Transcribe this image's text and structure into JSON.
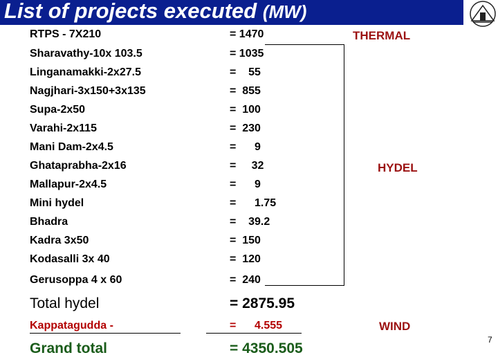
{
  "title": {
    "main": "List of  projects executed",
    "unit": "(MW)"
  },
  "category_labels": {
    "thermal": "THERMAL",
    "hydel": "HYDEL",
    "wind": "WIND"
  },
  "thermal": {
    "name": "RTPS -  7X210",
    "value": "= 1470"
  },
  "hydel_rows": [
    {
      "name": "Sharavathy-10x 103.5",
      "value": "= 1035"
    },
    {
      "name": "Linganamakki-2x27.5",
      "value": "=    55"
    },
    {
      "name": "Nagjhari-3x150+3x135",
      "value": "=  855"
    },
    {
      "name": "Supa-2x50",
      "value": "=  100"
    },
    {
      "name": "Varahi-2x115",
      "value": "=  230"
    },
    {
      "name": "Mani Dam-2x4.5",
      "value": "=      9"
    },
    {
      "name": "Ghataprabha-2x16",
      "value": "=     32"
    },
    {
      "name": "Mallapur-2x4.5",
      "value": "=      9"
    },
    {
      "name": "Mini hydel",
      "value": "=      1.75"
    },
    {
      "name": "Bhadra",
      "value": "=    39.2"
    },
    {
      "name": "Kadra    3x50",
      "value": "=  150"
    },
    {
      "name": "Kodasalli  3x 40",
      "value": "=  120"
    },
    {
      "name": "Gerusoppa 4 x 60",
      "value": "=  240"
    }
  ],
  "total_hydel": {
    "name": "Total hydel",
    "value": "= 2875.95"
  },
  "wind": {
    "name": "Kappatagudda  -",
    "value": "=      4.555"
  },
  "grand_total": {
    "name": "Grand total",
    "value": "= 4350.505"
  },
  "page_number": "7"
}
